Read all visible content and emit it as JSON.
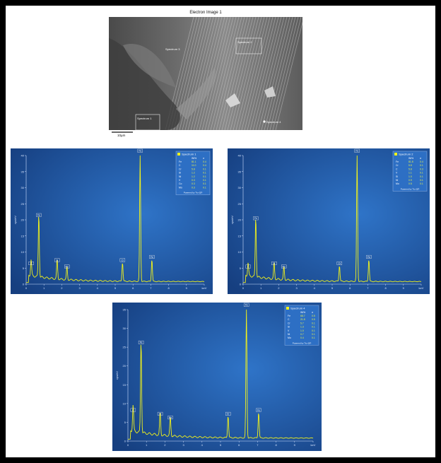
{
  "sem": {
    "title": "Electron Image 1",
    "labels": [
      "Spectrum 1",
      "Spectrum 2",
      "Spectrum 3",
      "Spectrum 4"
    ],
    "scale_bar": "10µm"
  },
  "colors": {
    "panel_bg": "#1d4f9a",
    "spectrum": "#f2f21a",
    "legend_bg": "#2d6fc4"
  },
  "chart_data": [
    {
      "type": "line",
      "title": "",
      "ylabel": "cps/eV",
      "xlabel": "keV",
      "xlim": [
        0,
        10
      ],
      "ylim": [
        0,
        40
      ],
      "x_ticks": [
        "0",
        "1",
        "2",
        "3",
        "4",
        "5",
        "6",
        "7",
        "8",
        "9",
        "keV"
      ],
      "y_ticks": [
        "0",
        "5",
        "10",
        "15",
        "20",
        "25",
        "30",
        "35",
        "40"
      ],
      "legend_title": "Spectrum 1",
      "legend_header": [
        "",
        "Wt%",
        "σ"
      ],
      "legend_rows": [
        [
          "Fe",
          "81.1",
          "0.4"
        ],
        [
          "C",
          "11.0",
          "0.4"
        ],
        [
          "Cr",
          "5.8",
          "0.1"
        ],
        [
          "Si",
          "1.2",
          "0.1"
        ],
        [
          "Ni",
          "1.2",
          "0.1"
        ],
        [
          "V",
          "0.3",
          "0.1"
        ],
        [
          "Co",
          "0.3",
          "0.1"
        ],
        [
          "Mo",
          "0.3",
          "0.1"
        ]
      ],
      "legend_footer": "Powered by Tru-Q®",
      "peaks": [
        {
          "label": "C",
          "x": 0.28,
          "y": 5
        },
        {
          "label": "Fe",
          "x": 0.71,
          "y": 20
        },
        {
          "label": "Si",
          "x": 1.74,
          "y": 6
        },
        {
          "label": "Mo",
          "x": 2.29,
          "y": 4
        },
        {
          "label": "Cr",
          "x": 5.41,
          "y": 6
        },
        {
          "label": "Fe",
          "x": 6.4,
          "y": 40
        },
        {
          "label": "Fe",
          "x": 7.06,
          "y": 7
        }
      ]
    },
    {
      "type": "line",
      "title": "",
      "ylabel": "cps/eV",
      "xlabel": "keV",
      "xlim": [
        0,
        10
      ],
      "ylim": [
        0,
        40
      ],
      "x_ticks": [
        "0",
        "1",
        "2",
        "3",
        "4",
        "5",
        "6",
        "7",
        "8",
        "9",
        "keV"
      ],
      "y_ticks": [
        "0",
        "5",
        "10",
        "15",
        "20",
        "25",
        "30",
        "35",
        "40"
      ],
      "legend_title": "Spectrum 2",
      "legend_header": [
        "",
        "Wt%",
        "σ"
      ],
      "legend_rows": [
        [
          "Fe",
          "81.8",
          "0.4"
        ],
        [
          "Cr",
          "5.8",
          "0.1"
        ],
        [
          "C",
          "5.8",
          "0.3"
        ],
        [
          "V",
          "1.1",
          "0.1"
        ],
        [
          "Si",
          "1.0",
          "0.1"
        ],
        [
          "Ni",
          "0.9",
          "0.1"
        ],
        [
          "Mo",
          "0.5",
          "0.1"
        ]
      ],
      "legend_footer": "Powered by Tru-Q®",
      "peaks": [
        {
          "label": "C",
          "x": 0.28,
          "y": 4
        },
        {
          "label": "Fe",
          "x": 0.71,
          "y": 19
        },
        {
          "label": "Si",
          "x": 1.74,
          "y": 5
        },
        {
          "label": "Mo",
          "x": 2.29,
          "y": 4
        },
        {
          "label": "Cr",
          "x": 5.41,
          "y": 5
        },
        {
          "label": "Fe",
          "x": 6.4,
          "y": 40
        },
        {
          "label": "Fe",
          "x": 7.06,
          "y": 7
        }
      ]
    },
    {
      "type": "line",
      "title": "",
      "ylabel": "cps/eV",
      "xlabel": "keV",
      "xlim": [
        0,
        10
      ],
      "ylim": [
        0,
        35
      ],
      "x_ticks": [
        "0",
        "1",
        "2",
        "3",
        "4",
        "5",
        "6",
        "7",
        "8",
        "9",
        "keV"
      ],
      "y_ticks": [
        "0",
        "5",
        "10",
        "15",
        "20",
        "25",
        "30",
        "35"
      ],
      "legend_title": "Spectrum 4",
      "legend_header": [
        "",
        "Wt%",
        "σ"
      ],
      "legend_rows": [
        [
          "Fe",
          "68.7",
          "0.5"
        ],
        [
          "C",
          "21.8",
          "0.5"
        ],
        [
          "Cr",
          "5.7",
          "0.1"
        ],
        [
          "Si",
          "1.3",
          "0.1"
        ],
        [
          "V",
          "1.0",
          "0.1"
        ],
        [
          "Ni",
          "0.7",
          "0.1"
        ],
        [
          "Mo",
          "0.4",
          "0.1"
        ]
      ],
      "legend_footer": "Powered by Tru-Q®",
      "peaks": [
        {
          "label": "C",
          "x": 0.28,
          "y": 7
        },
        {
          "label": "Fe",
          "x": 0.71,
          "y": 25
        },
        {
          "label": "Si",
          "x": 1.74,
          "y": 6
        },
        {
          "label": "Mo",
          "x": 2.29,
          "y": 5
        },
        {
          "label": "Cr",
          "x": 5.41,
          "y": 6
        },
        {
          "label": "Fe",
          "x": 6.4,
          "y": 35
        },
        {
          "label": "Fe",
          "x": 7.06,
          "y": 7
        }
      ]
    }
  ]
}
